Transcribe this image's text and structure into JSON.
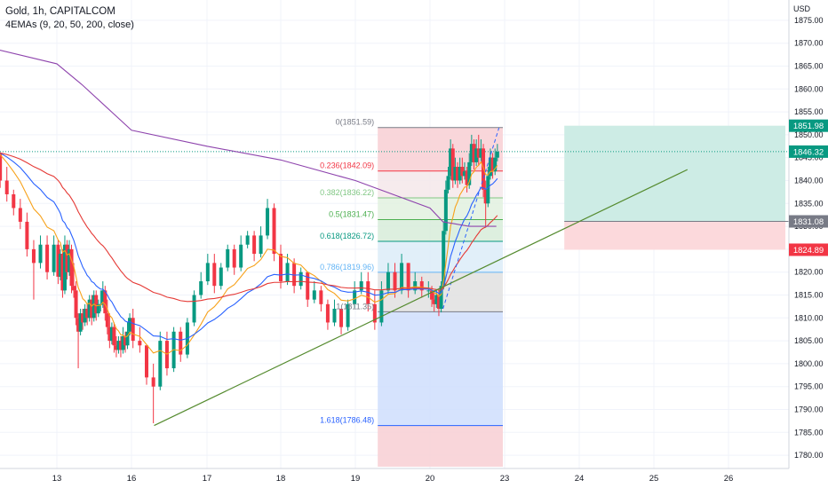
{
  "header": {
    "title": "Gold, 1h, CAPITALCOM",
    "indicator": "4EMAs (9, 20, 50, 200, close)"
  },
  "currency": "USD",
  "chart_data": {
    "type": "candlestick",
    "x_tick_labels": [
      "13",
      "16",
      "17",
      "18",
      "19",
      "20",
      "23",
      "24",
      "25",
      "26"
    ],
    "y_ticks": [
      1780,
      1785,
      1790,
      1795,
      1800,
      1805,
      1810,
      1815,
      1820,
      1825,
      1830,
      1835,
      1840,
      1845,
      1850,
      1855,
      1860,
      1865,
      1870,
      1875
    ],
    "y_tick_labels": [
      "1780.00",
      "1785.00",
      "1790.00",
      "1795.00",
      "1800.00",
      "1805.00",
      "1810.00",
      "1815.00",
      "1820.00",
      "1825.00",
      "1830.00",
      "1835.00",
      "1840.00",
      "1845.00",
      "1850.00",
      "1855.00",
      "1860.00",
      "1865.00",
      "1870.00",
      "1875.00"
    ],
    "ylim": [
      1777.5,
      1877.5
    ],
    "last_price": 1846.32,
    "price_tags": [
      {
        "label": "1851.98",
        "value": 1851.98,
        "color": "#089981"
      },
      {
        "label": "1846.32",
        "value": 1846.32,
        "color": "#089981"
      },
      {
        "label": "1831.08",
        "value": 1831.08,
        "color": "#787b86"
      },
      {
        "label": "1824.89",
        "value": 1824.89,
        "color": "#f23645"
      }
    ],
    "fibonacci": {
      "levels": [
        {
          "ratio": 0,
          "label": "0(1851.59)",
          "price": 1851.59,
          "color": "#787b86"
        },
        {
          "ratio": 0.236,
          "label": "0.236(1842.09)",
          "price": 1842.09,
          "color": "#f23645"
        },
        {
          "ratio": 0.382,
          "label": "0.382(1836.22)",
          "price": 1836.22,
          "color": "#81c784"
        },
        {
          "ratio": 0.5,
          "label": "0.5(1831.47)",
          "price": 1831.47,
          "color": "#4caf50"
        },
        {
          "ratio": 0.618,
          "label": "0.618(1826.72)",
          "price": 1826.72,
          "color": "#089981"
        },
        {
          "ratio": 0.786,
          "label": "0.786(1819.96)",
          "price": 1819.96,
          "color": "#64b5f6"
        },
        {
          "ratio": 1,
          "label": "1(1811.35)",
          "price": 1811.35,
          "color": "#787b86"
        },
        {
          "ratio": 1.618,
          "label": "1.618(1786.48)",
          "price": 1786.48,
          "color": "#2962ff"
        }
      ],
      "extends_below_to": 1777.5
    },
    "long_position": {
      "entry": 1831.08,
      "target": 1851.98,
      "stop": 1824.89
    },
    "trendline": {
      "from": {
        "day": 16.3,
        "price": 1786.5
      },
      "to": {
        "day": 25.45,
        "price": 1842.4
      }
    },
    "candles": [
      {
        "x": 11.88,
        "o": 1852,
        "h": 1853.0,
        "l": 1844.8,
        "c": 1846
      },
      {
        "x": 11.97,
        "o": 1846,
        "h": 1854.0,
        "l": 1840.8,
        "c": 1852
      },
      {
        "x": 12.06,
        "o": 1852,
        "h": 1854.0,
        "l": 1846.8,
        "c": 1848
      },
      {
        "x": 12.15,
        "o": 1848,
        "h": 1850.0,
        "l": 1844.8,
        "c": 1846
      },
      {
        "x": 12.24,
        "o": 1846,
        "h": 1846.0,
        "l": 1838.4,
        "c": 1840
      },
      {
        "x": 12.33,
        "o": 1840,
        "h": 1843.0,
        "l": 1835.4,
        "c": 1837
      },
      {
        "x": 12.42,
        "o": 1837,
        "h": 1838.0,
        "l": 1832.4,
        "c": 1834
      },
      {
        "x": 12.51,
        "o": 1834,
        "h": 1836.0,
        "l": 1829.4,
        "c": 1831
      },
      {
        "x": 12.6,
        "o": 1831,
        "h": 1833.0,
        "l": 1823.4,
        "c": 1825
      },
      {
        "x": 12.69,
        "o": 1825,
        "h": 1827.0,
        "l": 1814.0,
        "c": 1822
      },
      {
        "x": 12.78,
        "o": 1822,
        "h": 1828.0,
        "l": 1820.8,
        "c": 1826
      },
      {
        "x": 12.87,
        "o": 1826,
        "h": 1828.0,
        "l": 1818.4,
        "c": 1820
      },
      {
        "x": 12.96,
        "o": 1820,
        "h": 1828.0,
        "l": 1819.2,
        "c": 1826
      },
      {
        "x": 13.05,
        "o": 1826,
        "h": 1827.0,
        "l": 1817.4,
        "c": 1819
      },
      {
        "x": 13.14,
        "o": 1819,
        "h": 1825.0,
        "l": 1818.2,
        "c": 1824
      },
      {
        "x": 13.23,
        "o": 1824,
        "h": 1825.0,
        "l": 1814.4,
        "c": 1816
      },
      {
        "x": 13.32,
        "o": 1816,
        "h": 1828.0,
        "l": 1815.2,
        "c": 1826
      },
      {
        "x": 13.41,
        "o": 1826,
        "h": 1827.0,
        "l": 1818.4,
        "c": 1820
      },
      {
        "x": 13.5,
        "o": 1820,
        "h": 1827.0,
        "l": 1819.2,
        "c": 1825
      },
      {
        "x": 13.59,
        "o": 1825,
        "h": 1826.0,
        "l": 1815.4,
        "c": 1817
      },
      {
        "x": 13.68,
        "o": 1817,
        "h": 1822.0,
        "l": 1814.4,
        "c": 1816
      },
      {
        "x": 13.77,
        "o": 1816,
        "h": 1818.0,
        "l": 1808.4,
        "c": 1810
      },
      {
        "x": 13.86,
        "o": 1810,
        "h": 1811.0,
        "l": 1799.0,
        "c": 1807
      },
      {
        "x": 13.95,
        "o": 1807,
        "h": 1812.0,
        "l": 1806.2,
        "c": 1811
      },
      {
        "x": 14.04,
        "o": 1811,
        "h": 1812.0,
        "l": 1807.4,
        "c": 1809
      },
      {
        "x": 14.13,
        "o": 1809,
        "h": 1813.0,
        "l": 1808.2,
        "c": 1812
      },
      {
        "x": 14.22,
        "o": 1812,
        "h": 1813.0,
        "l": 1808.4,
        "c": 1810
      },
      {
        "x": 14.31,
        "o": 1810,
        "h": 1815.0,
        "l": 1809.2,
        "c": 1814
      },
      {
        "x": 14.4,
        "o": 1814,
        "h": 1815.0,
        "l": 1808.4,
        "c": 1810
      },
      {
        "x": 14.49,
        "o": 1810,
        "h": 1816.0,
        "l": 1809.2,
        "c": 1815
      },
      {
        "x": 14.58,
        "o": 1815,
        "h": 1816.0,
        "l": 1809.4,
        "c": 1811
      },
      {
        "x": 14.67,
        "o": 1811,
        "h": 1814.0,
        "l": 1810.2,
        "c": 1813
      },
      {
        "x": 14.76,
        "o": 1813,
        "h": 1816.0,
        "l": 1811.4,
        "c": 1813
      },
      {
        "x": 14.85,
        "o": 1813,
        "h": 1818.0,
        "l": 1812.2,
        "c": 1816
      },
      {
        "x": 14.94,
        "o": 1816,
        "h": 1817.0,
        "l": 1809.4,
        "c": 1811
      },
      {
        "x": 15.03,
        "o": 1811,
        "h": 1814.0,
        "l": 1806.4,
        "c": 1808
      },
      {
        "x": 15.12,
        "o": 1808,
        "h": 1811.0,
        "l": 1803.4,
        "c": 1805
      },
      {
        "x": 15.21,
        "o": 1805,
        "h": 1809.0,
        "l": 1804.2,
        "c": 1808
      },
      {
        "x": 15.3,
        "o": 1808,
        "h": 1809.0,
        "l": 1802.4,
        "c": 1804
      },
      {
        "x": 15.39,
        "o": 1804,
        "h": 1806.0,
        "l": 1801.4,
        "c": 1803
      },
      {
        "x": 15.48,
        "o": 1803,
        "h": 1806.0,
        "l": 1802.2,
        "c": 1805
      },
      {
        "x": 15.57,
        "o": 1805,
        "h": 1806.0,
        "l": 1801.4,
        "c": 1803
      },
      {
        "x": 15.66,
        "o": 1803,
        "h": 1808.0,
        "l": 1802.2,
        "c": 1806
      },
      {
        "x": 15.75,
        "o": 1806,
        "h": 1807.0,
        "l": 1802.4,
        "c": 1804
      },
      {
        "x": 15.84,
        "o": 1804,
        "h": 1809.0,
        "l": 1803.2,
        "c": 1807
      },
      {
        "x": 15.93,
        "o": 1807,
        "h": 1811.0,
        "l": 1806.2,
        "c": 1810
      },
      {
        "x": 16.02,
        "o": 1810,
        "h": 1812.0,
        "l": 1803.4,
        "c": 1805
      },
      {
        "x": 16.11,
        "o": 1805,
        "h": 1808.0,
        "l": 1802.4,
        "c": 1804
      },
      {
        "x": 16.2,
        "o": 1804,
        "h": 1804.0,
        "l": 1795.4,
        "c": 1797
      },
      {
        "x": 16.29,
        "o": 1797,
        "h": 1800.0,
        "l": 1787.0,
        "c": 1795
      },
      {
        "x": 16.38,
        "o": 1795,
        "h": 1807.0,
        "l": 1794.2,
        "c": 1805
      },
      {
        "x": 16.47,
        "o": 1805,
        "h": 1807.0,
        "l": 1797.4,
        "c": 1799
      },
      {
        "x": 16.56,
        "o": 1799,
        "h": 1808.0,
        "l": 1798.2,
        "c": 1807
      },
      {
        "x": 16.65,
        "o": 1807,
        "h": 1808.0,
        "l": 1800.4,
        "c": 1802
      },
      {
        "x": 16.74,
        "o": 1802,
        "h": 1810.0,
        "l": 1801.2,
        "c": 1809
      },
      {
        "x": 16.83,
        "o": 1809,
        "h": 1816.0,
        "l": 1808.2,
        "c": 1815
      },
      {
        "x": 16.92,
        "o": 1815,
        "h": 1820.0,
        "l": 1814.2,
        "c": 1818
      },
      {
        "x": 17.01,
        "o": 1818,
        "h": 1824.0,
        "l": 1817.2,
        "c": 1822
      },
      {
        "x": 17.1,
        "o": 1822,
        "h": 1824.0,
        "l": 1815.4,
        "c": 1817
      },
      {
        "x": 17.19,
        "o": 1817,
        "h": 1822.0,
        "l": 1816.2,
        "c": 1821
      },
      {
        "x": 17.28,
        "o": 1821,
        "h": 1826.0,
        "l": 1820.2,
        "c": 1825
      },
      {
        "x": 17.37,
        "o": 1825,
        "h": 1826.0,
        "l": 1819.4,
        "c": 1821
      },
      {
        "x": 17.46,
        "o": 1821,
        "h": 1828.0,
        "l": 1820.2,
        "c": 1826
      },
      {
        "x": 17.55,
        "o": 1826,
        "h": 1829.0,
        "l": 1825.2,
        "c": 1828
      },
      {
        "x": 17.64,
        "o": 1828,
        "h": 1829.0,
        "l": 1822.4,
        "c": 1824
      },
      {
        "x": 17.73,
        "o": 1824,
        "h": 1830.0,
        "l": 1823.2,
        "c": 1828
      },
      {
        "x": 17.82,
        "o": 1828,
        "h": 1836.0,
        "l": 1827.2,
        "c": 1834
      },
      {
        "x": 17.91,
        "o": 1834,
        "h": 1835.0,
        "l": 1822.4,
        "c": 1824
      },
      {
        "x": 18.0,
        "o": 1824,
        "h": 1826.0,
        "l": 1816.4,
        "c": 1818
      },
      {
        "x": 18.09,
        "o": 1818,
        "h": 1824.0,
        "l": 1817.2,
        "c": 1822
      },
      {
        "x": 18.18,
        "o": 1822,
        "h": 1823.0,
        "l": 1815.4,
        "c": 1817
      },
      {
        "x": 18.27,
        "o": 1817,
        "h": 1821.0,
        "l": 1816.2,
        "c": 1820
      },
      {
        "x": 18.36,
        "o": 1820,
        "h": 1820.0,
        "l": 1812.4,
        "c": 1814
      },
      {
        "x": 18.45,
        "o": 1814,
        "h": 1818.0,
        "l": 1813.2,
        "c": 1816
      },
      {
        "x": 18.54,
        "o": 1816,
        "h": 1817.0,
        "l": 1811.4,
        "c": 1813
      },
      {
        "x": 18.63,
        "o": 1813,
        "h": 1814.0,
        "l": 1807.4,
        "c": 1809
      },
      {
        "x": 18.72,
        "o": 1809,
        "h": 1814.0,
        "l": 1808.2,
        "c": 1812
      },
      {
        "x": 18.81,
        "o": 1812,
        "h": 1812.0,
        "l": 1806.4,
        "c": 1808
      },
      {
        "x": 18.9,
        "o": 1808,
        "h": 1814.0,
        "l": 1807.2,
        "c": 1813
      },
      {
        "x": 18.99,
        "o": 1813,
        "h": 1818.0,
        "l": 1812.2,
        "c": 1816
      },
      {
        "x": 19.08,
        "o": 1816,
        "h": 1820.0,
        "l": 1815.2,
        "c": 1818
      },
      {
        "x": 19.17,
        "o": 1818,
        "h": 1820.0,
        "l": 1811.4,
        "c": 1813
      },
      {
        "x": 19.26,
        "o": 1813,
        "h": 1816.0,
        "l": 1807.4,
        "c": 1809
      },
      {
        "x": 19.35,
        "o": 1809,
        "h": 1818.0,
        "l": 1808.2,
        "c": 1816
      },
      {
        "x": 19.44,
        "o": 1816,
        "h": 1822.0,
        "l": 1815.2,
        "c": 1820
      },
      {
        "x": 19.53,
        "o": 1820,
        "h": 1822.0,
        "l": 1814.4,
        "c": 1816
      },
      {
        "x": 19.62,
        "o": 1816,
        "h": 1824.0,
        "l": 1815.2,
        "c": 1822
      },
      {
        "x": 19.71,
        "o": 1822,
        "h": 1822.0,
        "l": 1814.4,
        "c": 1816
      },
      {
        "x": 19.8,
        "o": 1816,
        "h": 1820.0,
        "l": 1815.2,
        "c": 1818
      },
      {
        "x": 19.89,
        "o": 1818,
        "h": 1819.0,
        "l": 1814.4,
        "c": 1816
      },
      {
        "x": 19.98,
        "o": 1816,
        "h": 1818.0,
        "l": 1814.4,
        "c": 1816
      },
      {
        "x": 20.07,
        "o": 1816,
        "h": 1817.0,
        "l": 1812.4,
        "c": 1814
      },
      {
        "x": 20.16,
        "o": 1814,
        "h": 1816.0,
        "l": 1811.4,
        "c": 1813
      },
      {
        "x": 20.25,
        "o": 1813,
        "h": 1816.0,
        "l": 1812.2,
        "c": 1815
      },
      {
        "x": 20.34,
        "o": 1815,
        "h": 1816.0,
        "l": 1810.4,
        "c": 1812
      },
      {
        "x": 20.43,
        "o": 1812,
        "h": 1818.0,
        "l": 1811.2,
        "c": 1817
      },
      {
        "x": 20.52,
        "o": 1817,
        "h": 1831.0,
        "l": 1816.2,
        "c": 1829
      },
      {
        "x": 20.61,
        "o": 1829,
        "h": 1840.0,
        "l": 1828.2,
        "c": 1838
      },
      {
        "x": 20.7,
        "o": 1838,
        "h": 1843.0,
        "l": 1837.2,
        "c": 1841
      },
      {
        "x": 20.79,
        "o": 1841,
        "h": 1849.0,
        "l": 1840.2,
        "c": 1847
      },
      {
        "x": 20.88,
        "o": 1847,
        "h": 1848.0,
        "l": 1838.4,
        "c": 1840
      },
      {
        "x": 20.97,
        "o": 1840,
        "h": 1845.0,
        "l": 1839.2,
        "c": 1843
      },
      {
        "x": 21.06,
        "o": 1843,
        "h": 1844.0,
        "l": 1838.4,
        "c": 1840
      },
      {
        "x": 21.15,
        "o": 1840,
        "h": 1845.0,
        "l": 1839.2,
        "c": 1843
      },
      {
        "x": 21.24,
        "o": 1843,
        "h": 1845.0,
        "l": 1839.4,
        "c": 1841
      },
      {
        "x": 21.33,
        "o": 1841,
        "h": 1844.0,
        "l": 1840.2,
        "c": 1842
      },
      {
        "x": 21.42,
        "o": 1842,
        "h": 1843.0,
        "l": 1837.4,
        "c": 1839
      },
      {
        "x": 21.51,
        "o": 1839,
        "h": 1846.0,
        "l": 1838.2,
        "c": 1844
      },
      {
        "x": 21.6,
        "o": 1844,
        "h": 1850.0,
        "l": 1843.2,
        "c": 1848
      },
      {
        "x": 21.69,
        "o": 1848,
        "h": 1849.0,
        "l": 1842.4,
        "c": 1844
      },
      {
        "x": 21.78,
        "o": 1844,
        "h": 1849.0,
        "l": 1843.2,
        "c": 1847
      },
      {
        "x": 21.87,
        "o": 1847,
        "h": 1850.0,
        "l": 1843.4,
        "c": 1845
      },
      {
        "x": 21.96,
        "o": 1845,
        "h": 1849.0,
        "l": 1844.2,
        "c": 1847
      },
      {
        "x": 22.05,
        "o": 1847,
        "h": 1848.0,
        "l": 1836.4,
        "c": 1838
      },
      {
        "x": 22.14,
        "o": 1838,
        "h": 1840.0,
        "l": 1830.0,
        "c": 1835
      },
      {
        "x": 22.23,
        "o": 1835,
        "h": 1843.0,
        "l": 1834.2,
        "c": 1841
      },
      {
        "x": 22.32,
        "o": 1841,
        "h": 1847.0,
        "l": 1840.2,
        "c": 1845
      },
      {
        "x": 22.41,
        "o": 1845,
        "h": 1846.0,
        "l": 1840.4,
        "c": 1842
      },
      {
        "x": 22.5,
        "o": 1842,
        "h": 1847.0,
        "l": 1841.2,
        "c": 1845
      },
      {
        "x": 22.59,
        "o": 1845,
        "h": 1848.0,
        "l": 1844.2,
        "c": 1846.3
      }
    ],
    "ema_series": [
      {
        "period": 9,
        "color": "#f7a21b"
      },
      {
        "period": 20,
        "color": "#2962ff"
      },
      {
        "period": 50,
        "color": "#e53935"
      },
      {
        "period": 200,
        "color": "#8e44ad"
      }
    ],
    "ema200_values": [
      {
        "day": 11.85,
        "price": 1870
      },
      {
        "day": 13.0,
        "price": 1865.5
      },
      {
        "day": 14.0,
        "price": 1861
      },
      {
        "day": 15.0,
        "price": 1856
      },
      {
        "day": 16.0,
        "price": 1851
      },
      {
        "day": 17.0,
        "price": 1847.5
      },
      {
        "day": 18.0,
        "price": 1844.5
      },
      {
        "day": 19.0,
        "price": 1840
      },
      {
        "day": 20.0,
        "price": 1834
      },
      {
        "day": 20.5,
        "price": 1831
      },
      {
        "day": 21.5,
        "price": 1830
      },
      {
        "day": 22.55,
        "price": 1830
      }
    ],
    "colors": {
      "up": "#089981",
      "down": "#f23645",
      "trendline": "#558b2f"
    }
  }
}
